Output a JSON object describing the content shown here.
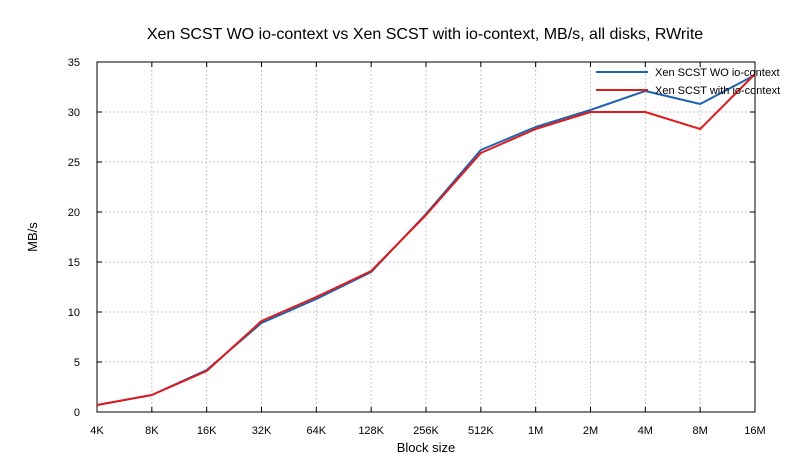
{
  "chart_data": {
    "type": "line",
    "title": "Xen SCST WO io-context vs Xen SCST with io-context, MB/s, all disks, RWrite",
    "xlabel": "Block size",
    "ylabel": "MB/s",
    "categories": [
      "4K",
      "8K",
      "16K",
      "32K",
      "64K",
      "128K",
      "256K",
      "512K",
      "1M",
      "2M",
      "4M",
      "8M",
      "16M"
    ],
    "ylim": [
      0,
      35
    ],
    "yticks": [
      0,
      5,
      10,
      15,
      20,
      25,
      30,
      35
    ],
    "grid": true,
    "legend_position": "top-right",
    "series": [
      {
        "name": "Xen SCST WO io-context",
        "color": "#1f62b0",
        "values": [
          0.7,
          1.7,
          4.2,
          8.9,
          11.3,
          14.0,
          19.8,
          26.2,
          28.5,
          30.2,
          32.1,
          30.8,
          33.7
        ]
      },
      {
        "name": "Xen SCST with io-context",
        "color": "#e01b1b",
        "values": [
          0.7,
          1.7,
          4.1,
          9.1,
          11.5,
          14.1,
          19.7,
          25.9,
          28.3,
          30.0,
          30.0,
          28.3,
          33.8
        ]
      }
    ]
  }
}
